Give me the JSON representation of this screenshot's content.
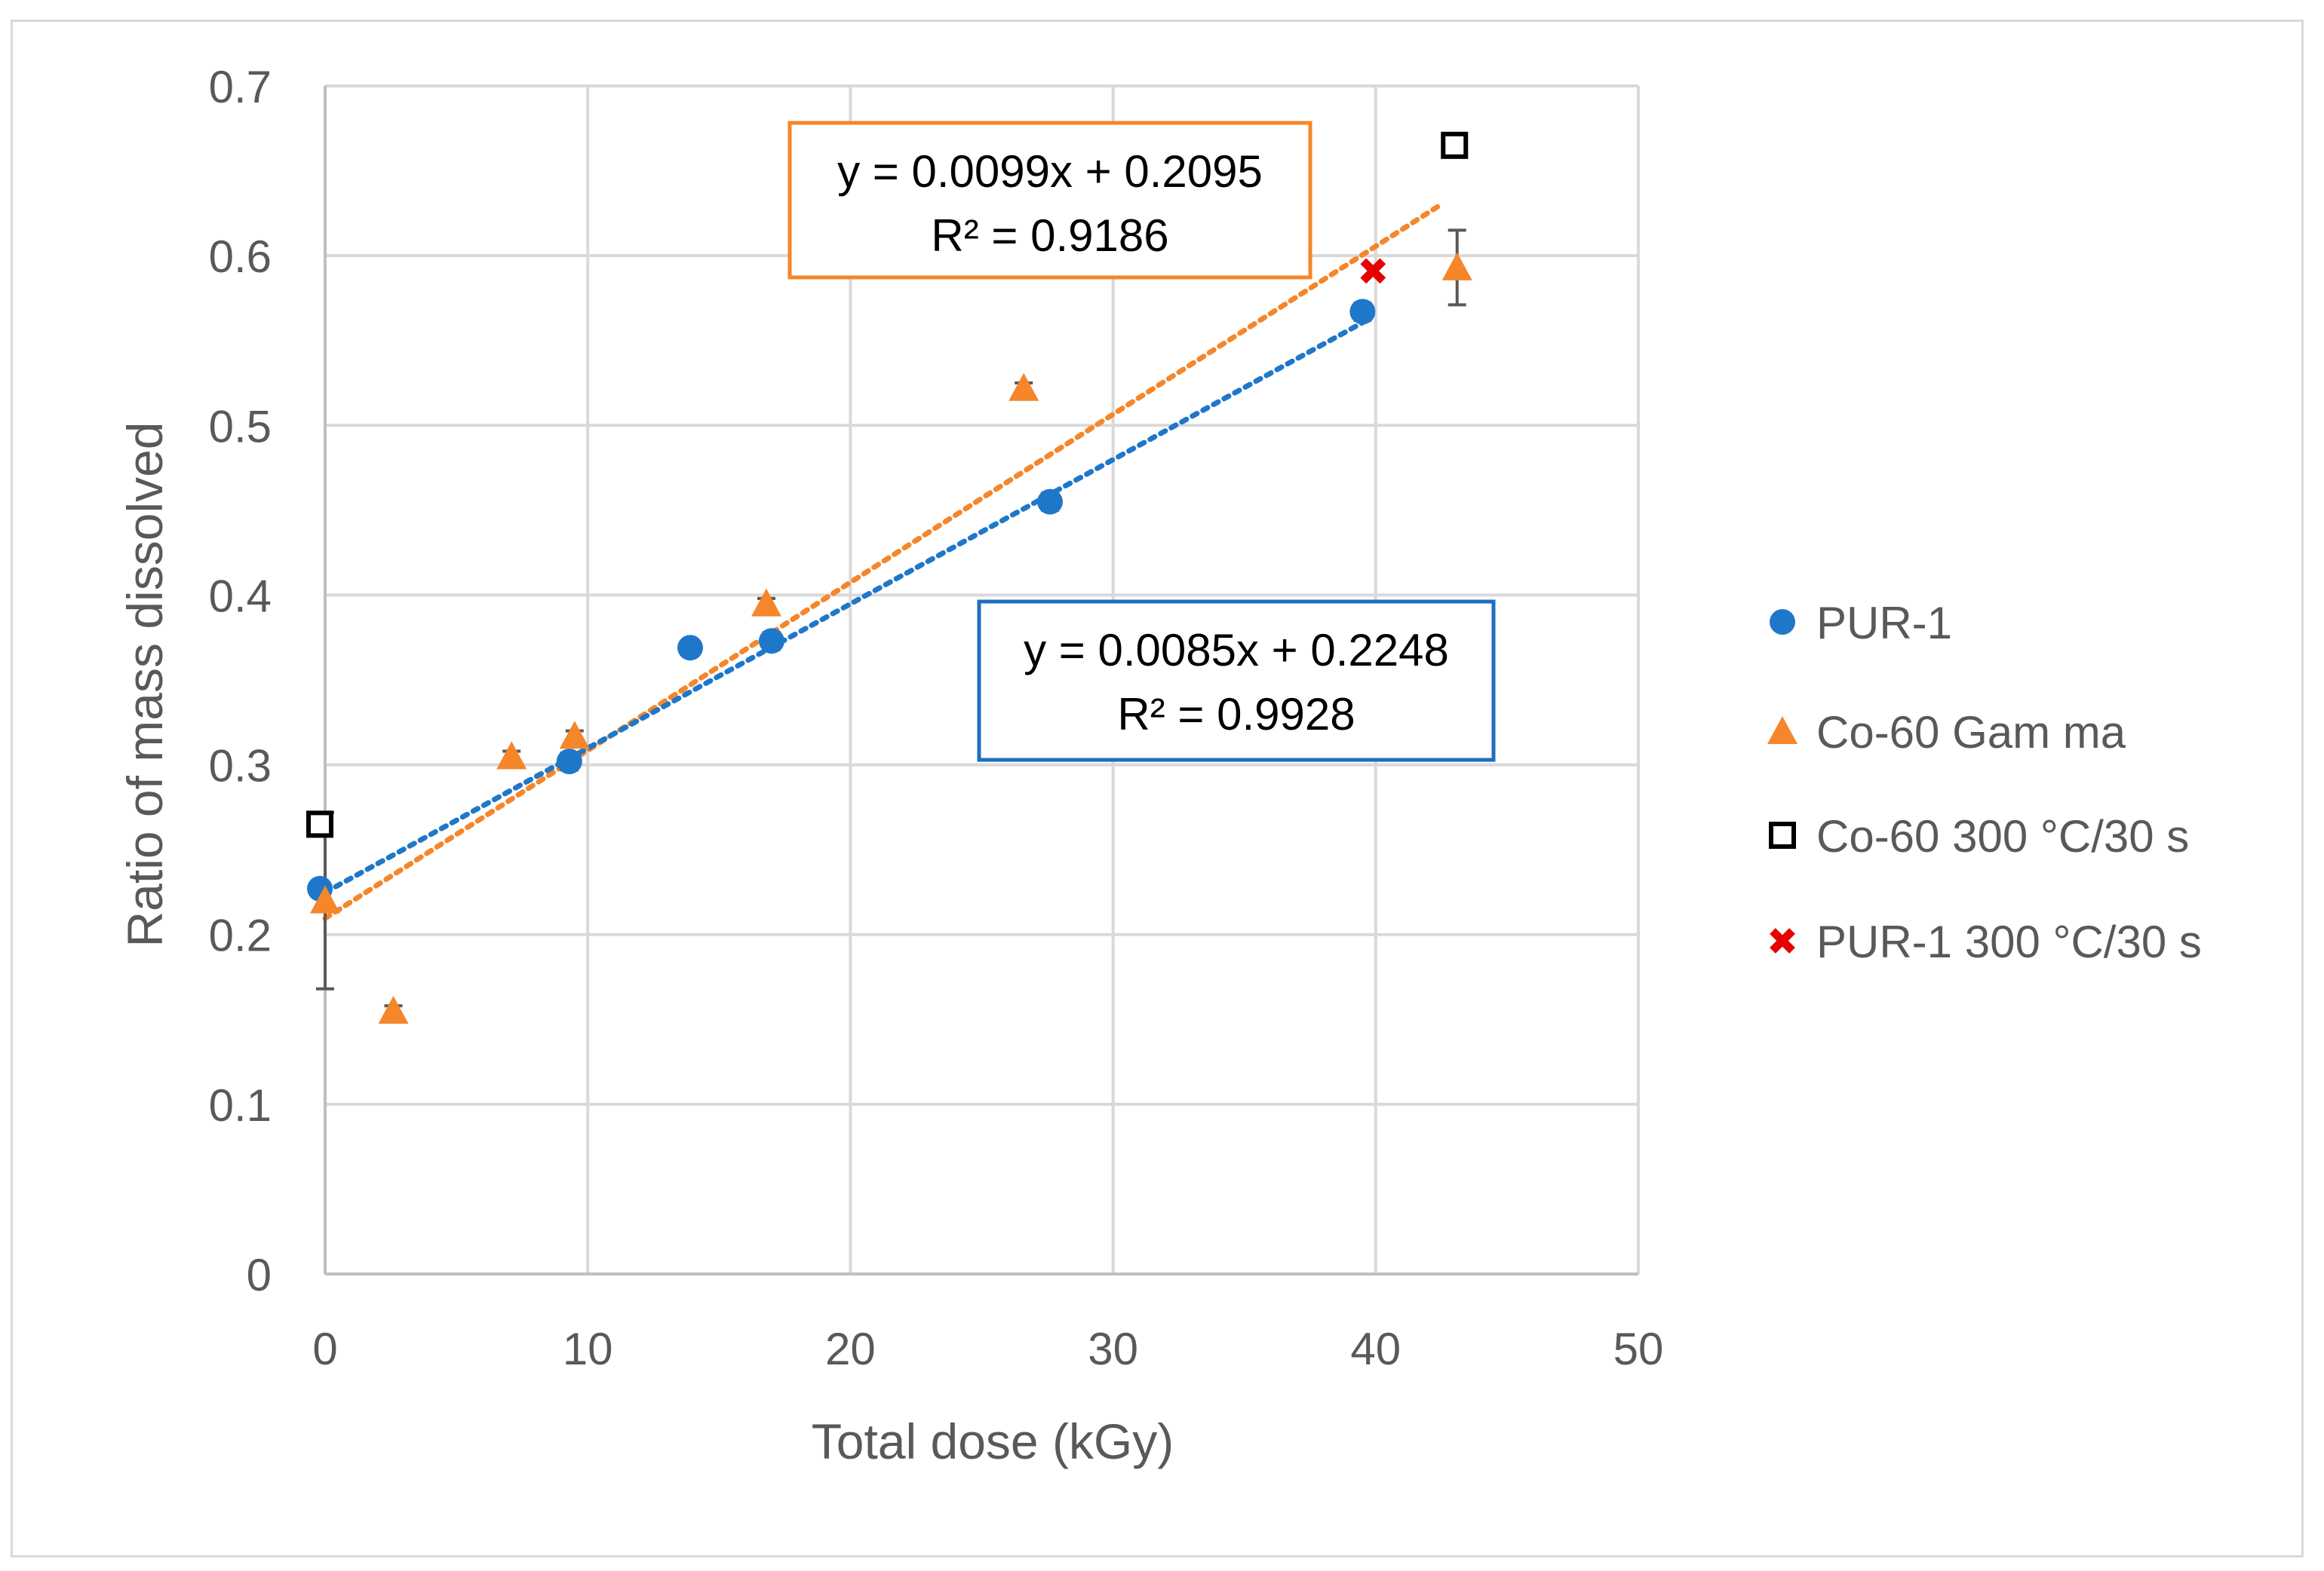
{
  "chart_data": {
    "type": "scatter",
    "title": "",
    "xlabel": "Total dose (kGy)",
    "ylabel": "Ratio of mass dissolved",
    "xlim": [
      0,
      50
    ],
    "ylim": [
      0,
      0.7
    ],
    "x_ticks": [
      "0",
      "10",
      "20",
      "30",
      "40",
      "50"
    ],
    "y_ticks": [
      "0",
      "0.1",
      "0.2",
      "0.3",
      "0.4",
      "0.5",
      "0.6",
      "0.7"
    ],
    "grid": true,
    "legend_position": "right",
    "series": [
      {
        "name": "PUR-1",
        "marker": "circle",
        "color": "#1f77c9",
        "points": [
          {
            "x": -0.2,
            "y": 0.227,
            "err": 0
          },
          {
            "x": 9.3,
            "y": 0.302,
            "err": 0.005
          },
          {
            "x": 13.9,
            "y": 0.369,
            "err": 0
          },
          {
            "x": 17.0,
            "y": 0.373,
            "err": 0.005
          },
          {
            "x": 27.6,
            "y": 0.455,
            "err": 0.005
          },
          {
            "x": 39.5,
            "y": 0.567,
            "err": 0.005
          }
        ]
      },
      {
        "name": "Co-60 Gam ma",
        "marker": "triangle",
        "color": "#f5862a",
        "points": [
          {
            "x": 0.0,
            "y": 0.22,
            "err": 0.052
          },
          {
            "x": 2.6,
            "y": 0.155,
            "err": 0.003
          },
          {
            "x": 7.1,
            "y": 0.305,
            "err": 0.003
          },
          {
            "x": 9.5,
            "y": 0.317,
            "err": 0.003
          },
          {
            "x": 16.8,
            "y": 0.395,
            "err": 0.003
          },
          {
            "x": 26.6,
            "y": 0.522,
            "err": 0.003
          },
          {
            "x": 43.1,
            "y": 0.593,
            "err": 0.022
          }
        ]
      },
      {
        "name": "Co-60 300 °C/30 s",
        "marker": "open-square",
        "color": "#000000",
        "points": [
          {
            "x": -0.2,
            "y": 0.265
          },
          {
            "x": 43.0,
            "y": 0.665
          }
        ]
      },
      {
        "name": "PUR-1 300 °C/30 s",
        "marker": "x",
        "color": "#e60000",
        "points": [
          {
            "x": 39.9,
            "y": 0.591
          }
        ]
      }
    ],
    "trendlines": [
      {
        "series": "Co-60 Gam ma",
        "color": "#f5862a",
        "slope": 0.0099,
        "intercept": 0.2095,
        "x_range": [
          0,
          42.5
        ],
        "equation": "y = 0.0099x + 0.2095",
        "r2": "R² = 0.9186",
        "border_color": "#f5862a"
      },
      {
        "series": "PUR-1",
        "color": "#1f77c9",
        "slope": 0.0085,
        "intercept": 0.2248,
        "x_range": [
          0,
          39.5
        ],
        "equation": "y = 0.0085x + 0.2248",
        "r2": "R² = 0.9928",
        "border_color": "#1f6ec0"
      }
    ]
  }
}
